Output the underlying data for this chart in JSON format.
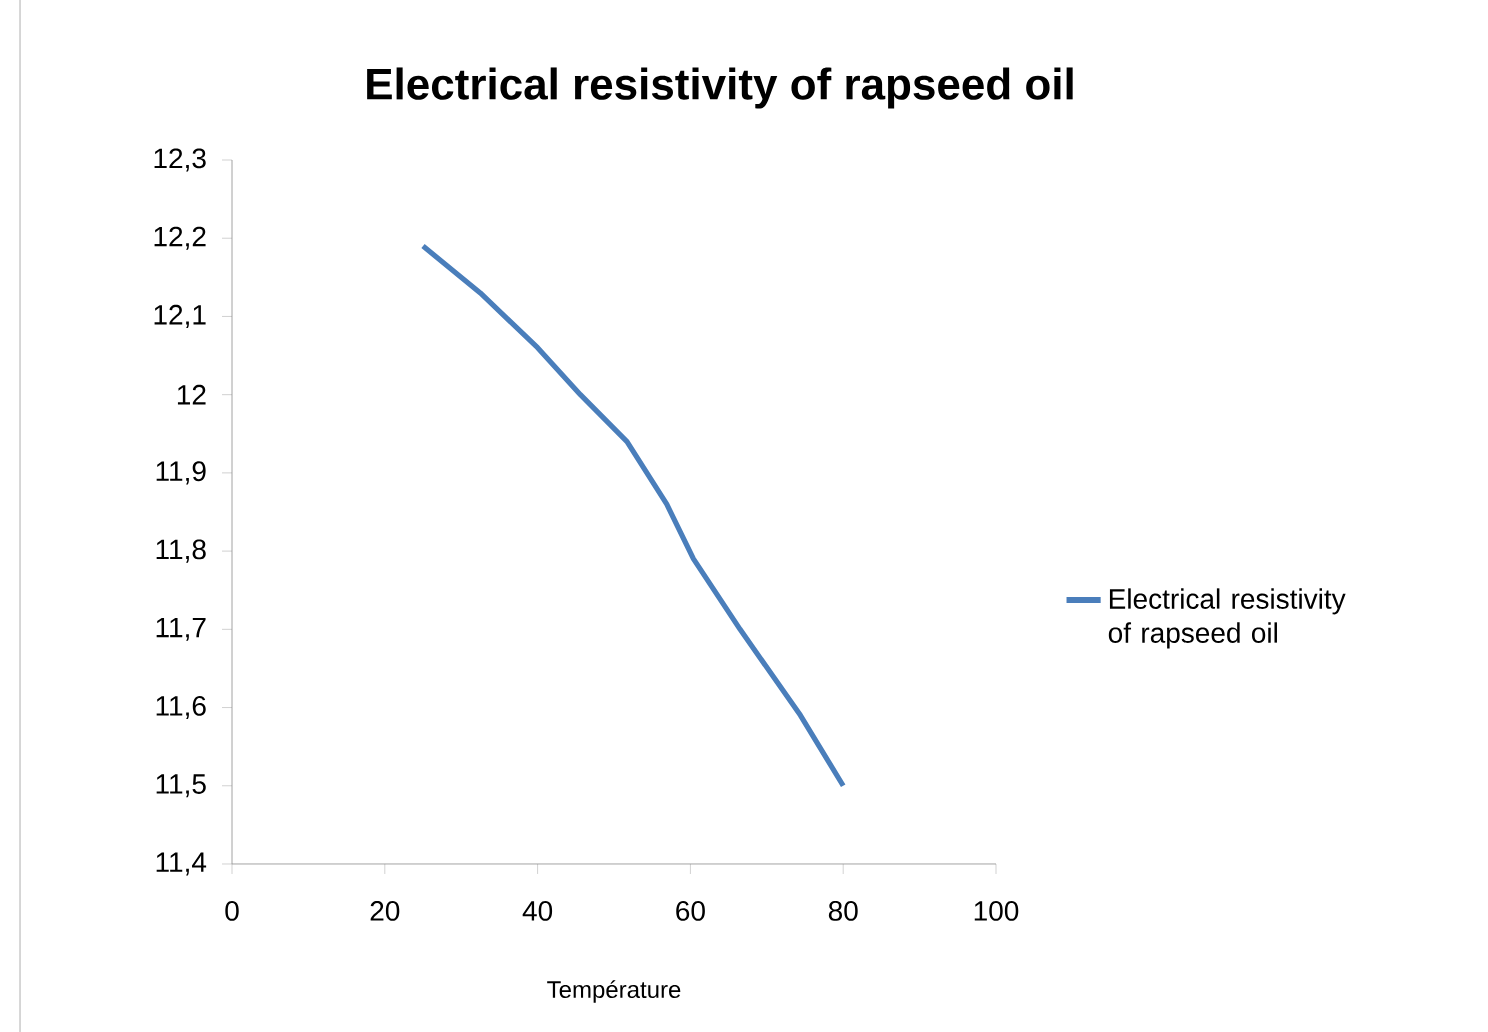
{
  "chart_data": {
    "type": "line",
    "title": "Electrical resistivity of rapseed oil",
    "xlabel": "Température",
    "series": [
      {
        "name": "Electrical resistivity of rapseed oil",
        "color": "#4a7ebb",
        "x": [
          25,
          32.5,
          40,
          45.6,
          51.7,
          56.9,
          60.4,
          66.5,
          74.4,
          80
        ],
        "values": [
          12.19,
          12.13,
          12.06,
          12.0,
          11.94,
          11.86,
          11.79,
          11.7,
          11.59,
          11.5
        ]
      }
    ],
    "xlim": [
      0,
      100
    ],
    "xticks": [
      0,
      20,
      40,
      60,
      80,
      100
    ],
    "ylim": [
      11.4,
      12.3
    ],
    "yticks": [
      {
        "value": 11.4,
        "label": "11,4"
      },
      {
        "value": 11.5,
        "label": "11,5"
      },
      {
        "value": 11.6,
        "label": "11,6"
      },
      {
        "value": 11.7,
        "label": "11,7"
      },
      {
        "value": 11.8,
        "label": "11,8"
      },
      {
        "value": 11.9,
        "label": "11,9"
      },
      {
        "value": 12,
        "label": "12"
      },
      {
        "value": 12.1,
        "label": "12,1"
      },
      {
        "value": 12.2,
        "label": "12,2"
      },
      {
        "value": 12.3,
        "label": "12,3"
      }
    ],
    "legend": "right",
    "grid": false,
    "marker": "none",
    "line_style": "solid"
  }
}
